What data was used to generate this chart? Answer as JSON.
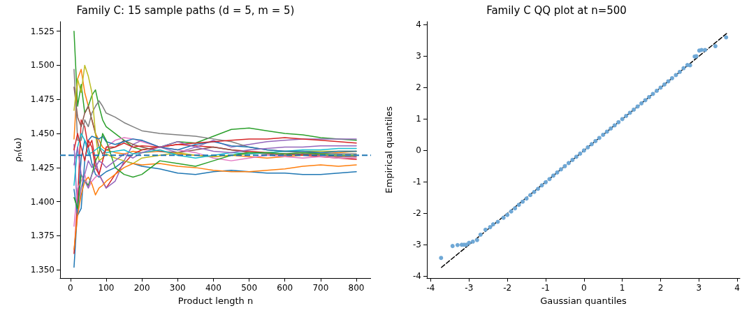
{
  "chart_data": [
    {
      "type": "line",
      "title": "Family C: 15 sample paths (d = 5, m = 5)",
      "xlabel": "Product length n",
      "ylabel": "ρ$_{n}$(ω)",
      "x": [
        10,
        20,
        30,
        40,
        50,
        60,
        70,
        80,
        90,
        100,
        125,
        150,
        175,
        200,
        250,
        300,
        350,
        400,
        450,
        500,
        550,
        600,
        650,
        700,
        750,
        800
      ],
      "xlim": [
        -29,
        841
      ],
      "xticks": [
        0,
        100,
        200,
        300,
        400,
        500,
        600,
        700,
        800
      ],
      "ylim": [
        1.344,
        1.532
      ],
      "yticks": [
        {
          "value": 1.35,
          "label": "1.350"
        },
        {
          "value": 1.375,
          "label": "1.375"
        },
        {
          "value": 1.4,
          "label": "1.400"
        },
        {
          "value": 1.425,
          "label": "1.425"
        },
        {
          "value": 1.45,
          "label": "1.450"
        },
        {
          "value": 1.475,
          "label": "1.475"
        },
        {
          "value": 1.5,
          "label": "1.500"
        },
        {
          "value": 1.525,
          "label": "1.525"
        }
      ],
      "grid": false,
      "line_style": "solid",
      "marker": "none",
      "ref_lines": [
        {
          "axis": "y",
          "value": 1.434,
          "color": "#1f77b4",
          "line_style": "dashed"
        }
      ],
      "series": [
        {
          "color": "#1f77b4",
          "values": [
            1.352,
            1.395,
            1.432,
            1.445,
            1.44,
            1.428,
            1.42,
            1.418,
            1.42,
            1.422,
            1.425,
            1.43,
            1.428,
            1.426,
            1.424,
            1.421,
            1.42,
            1.422,
            1.423,
            1.422,
            1.421,
            1.421,
            1.42,
            1.42,
            1.421,
            1.422
          ]
        },
        {
          "color": "#ff7f0e",
          "values": [
            1.446,
            1.49,
            1.497,
            1.48,
            1.47,
            1.46,
            1.45,
            1.445,
            1.44,
            1.438,
            1.436,
            1.435,
            1.437,
            1.436,
            1.437,
            1.435,
            1.434,
            1.433,
            1.434,
            1.433,
            1.432,
            1.433,
            1.434,
            1.435,
            1.436,
            1.437
          ]
        },
        {
          "color": "#2ca02c",
          "values": [
            1.525,
            1.47,
            1.486,
            1.465,
            1.47,
            1.478,
            1.482,
            1.47,
            1.46,
            1.455,
            1.45,
            1.445,
            1.44,
            1.438,
            1.44,
            1.444,
            1.443,
            1.448,
            1.453,
            1.454,
            1.452,
            1.45,
            1.449,
            1.447,
            1.446,
            1.445
          ]
        },
        {
          "color": "#d62728",
          "values": [
            1.362,
            1.4,
            1.46,
            1.455,
            1.44,
            1.445,
            1.43,
            1.42,
            1.415,
            1.41,
            1.42,
            1.428,
            1.435,
            1.438,
            1.44,
            1.442,
            1.441,
            1.44,
            1.438,
            1.437,
            1.436,
            1.435,
            1.434,
            1.433,
            1.432,
            1.431
          ]
        },
        {
          "color": "#9467bd",
          "values": [
            1.442,
            1.39,
            1.41,
            1.42,
            1.43,
            1.425,
            1.43,
            1.42,
            1.415,
            1.41,
            1.415,
            1.43,
            1.442,
            1.445,
            1.44,
            1.436,
            1.44,
            1.445,
            1.44,
            1.442,
            1.444,
            1.445,
            1.446,
            1.446,
            1.446,
            1.446
          ]
        },
        {
          "color": "#8c564b",
          "values": [
            1.484,
            1.462,
            1.455,
            1.465,
            1.47,
            1.46,
            1.45,
            1.44,
            1.435,
            1.438,
            1.44,
            1.445,
            1.442,
            1.44,
            1.437,
            1.436,
            1.438,
            1.44,
            1.438,
            1.436,
            1.435,
            1.434,
            1.435,
            1.434,
            1.433,
            1.433
          ]
        },
        {
          "color": "#e377c2",
          "values": [
            1.382,
            1.41,
            1.415,
            1.42,
            1.41,
            1.415,
            1.418,
            1.42,
            1.43,
            1.44,
            1.445,
            1.447,
            1.446,
            1.444,
            1.44,
            1.438,
            1.436,
            1.432,
            1.43,
            1.432,
            1.434,
            1.433,
            1.432,
            1.433,
            1.432,
            1.432
          ]
        },
        {
          "color": "#7f7f7f",
          "values": [
            1.497,
            1.445,
            1.445,
            1.46,
            1.455,
            1.465,
            1.47,
            1.474,
            1.47,
            1.465,
            1.462,
            1.458,
            1.455,
            1.452,
            1.45,
            1.449,
            1.448,
            1.446,
            1.444,
            1.44,
            1.438,
            1.437,
            1.436,
            1.436,
            1.435,
            1.435
          ]
        },
        {
          "color": "#bcbd22",
          "values": [
            1.467,
            1.49,
            1.48,
            1.5,
            1.492,
            1.48,
            1.45,
            1.43,
            1.432,
            1.435,
            1.432,
            1.43,
            1.428,
            1.432,
            1.434,
            1.436,
            1.434,
            1.433,
            1.434,
            1.435,
            1.436,
            1.437,
            1.437,
            1.437,
            1.437,
            1.437
          ]
        },
        {
          "color": "#17becf",
          "values": [
            1.412,
            1.44,
            1.45,
            1.445,
            1.435,
            1.436,
            1.438,
            1.44,
            1.438,
            1.436,
            1.437,
            1.438,
            1.435,
            1.436,
            1.438,
            1.434,
            1.432,
            1.434,
            1.436,
            1.435,
            1.436,
            1.437,
            1.438,
            1.438,
            1.439,
            1.439
          ]
        },
        {
          "color": "#1f77b4",
          "values": [
            1.409,
            1.39,
            1.395,
            1.43,
            1.445,
            1.448,
            1.447,
            1.446,
            1.448,
            1.444,
            1.442,
            1.444,
            1.446,
            1.445,
            1.44,
            1.438,
            1.442,
            1.444,
            1.441,
            1.44,
            1.438,
            1.437,
            1.437,
            1.436,
            1.437,
            1.437
          ]
        },
        {
          "color": "#ff7f0e",
          "values": [
            1.365,
            1.39,
            1.405,
            1.415,
            1.418,
            1.413,
            1.405,
            1.41,
            1.412,
            1.415,
            1.42,
            1.425,
            1.428,
            1.427,
            1.428,
            1.426,
            1.425,
            1.423,
            1.422,
            1.422,
            1.423,
            1.424,
            1.426,
            1.427,
            1.426,
            1.427
          ]
        },
        {
          "color": "#2ca02c",
          "values": [
            1.403,
            1.395,
            1.42,
            1.415,
            1.412,
            1.42,
            1.43,
            1.435,
            1.45,
            1.445,
            1.425,
            1.42,
            1.418,
            1.42,
            1.43,
            1.428,
            1.426,
            1.43,
            1.434,
            1.436,
            1.436,
            1.435,
            1.436,
            1.435,
            1.434,
            1.434
          ]
        },
        {
          "color": "#d62728",
          "values": [
            1.438,
            1.45,
            1.44,
            1.43,
            1.445,
            1.44,
            1.425,
            1.42,
            1.43,
            1.44,
            1.44,
            1.443,
            1.44,
            1.441,
            1.44,
            1.442,
            1.443,
            1.444,
            1.445,
            1.446,
            1.446,
            1.447,
            1.446,
            1.445,
            1.444,
            1.443
          ]
        },
        {
          "color": "#9467bd",
          "values": [
            1.427,
            1.44,
            1.42,
            1.415,
            1.41,
            1.42,
            1.425,
            1.43,
            1.428,
            1.425,
            1.43,
            1.435,
            1.432,
            1.436,
            1.44,
            1.444,
            1.44,
            1.437,
            1.436,
            1.438,
            1.439,
            1.44,
            1.44,
            1.441,
            1.441,
            1.441
          ]
        }
      ]
    },
    {
      "type": "scatter",
      "title": "Family C QQ plot at n=500",
      "xlabel": "Gaussian quantiles",
      "ylabel": "Empirical quantiles",
      "xlim": [
        -4.1,
        4.07
      ],
      "xticks": [
        -4,
        -3,
        -2,
        -1,
        0,
        1,
        2,
        3,
        4
      ],
      "ylim": [
        -4.06,
        4.1
      ],
      "yticks": [
        -4,
        -3,
        -2,
        -1,
        0,
        1,
        2,
        3,
        4
      ],
      "grid": false,
      "marker": "circle",
      "series": [
        {
          "color": "#6fa8d6",
          "x": [
            -3.73,
            -3.43,
            -3.3,
            -3.19,
            -3.13,
            -3.07,
            -3.0,
            -2.9,
            -2.79,
            -2.7,
            -2.57,
            -2.45,
            -2.37,
            -2.25,
            -2.1,
            -2.0,
            -1.9,
            -1.8,
            -1.7,
            -1.6,
            -1.5,
            -1.4,
            -1.3,
            -1.2,
            -1.1,
            -1.0,
            -0.9,
            -0.8,
            -0.7,
            -0.6,
            -0.5,
            -0.4,
            -0.3,
            -0.2,
            -0.1,
            0,
            0.1,
            0.2,
            0.3,
            0.4,
            0.5,
            0.6,
            0.7,
            0.8,
            0.9,
            1.0,
            1.1,
            1.2,
            1.3,
            1.4,
            1.5,
            1.6,
            1.7,
            1.8,
            1.9,
            2.0,
            2.1,
            2.2,
            2.3,
            2.4,
            2.5,
            2.6,
            2.7,
            2.77,
            2.89,
            2.93,
            3.01,
            3.07,
            3.16,
            3.43,
            3.71
          ],
          "values": [
            -3.42,
            -3.04,
            -3.01,
            -3.0,
            -3.0,
            -3.0,
            -2.94,
            -2.9,
            -2.85,
            -2.68,
            -2.52,
            -2.44,
            -2.35,
            -2.27,
            -2.14,
            -2.05,
            -1.94,
            -1.84,
            -1.73,
            -1.63,
            -1.53,
            -1.42,
            -1.32,
            -1.22,
            -1.11,
            -1.01,
            -0.91,
            -0.8,
            -0.7,
            -0.6,
            -0.5,
            -0.4,
            -0.3,
            -0.2,
            -0.1,
            0,
            0.1,
            0.2,
            0.3,
            0.4,
            0.5,
            0.6,
            0.7,
            0.8,
            0.9,
            1.0,
            1.1,
            1.2,
            1.3,
            1.4,
            1.5,
            1.6,
            1.7,
            1.8,
            1.9,
            2.0,
            2.1,
            2.2,
            2.3,
            2.4,
            2.5,
            2.62,
            2.72,
            2.71,
            2.99,
            3.0,
            3.18,
            3.2,
            3.2,
            3.32,
            3.6
          ]
        },
        {
          "type": "line",
          "color": "#000000",
          "line_style": "dashed",
          "marker": "none",
          "x": [
            -3.72,
            3.72
          ],
          "values": [
            -3.72,
            3.72
          ]
        }
      ]
    }
  ]
}
